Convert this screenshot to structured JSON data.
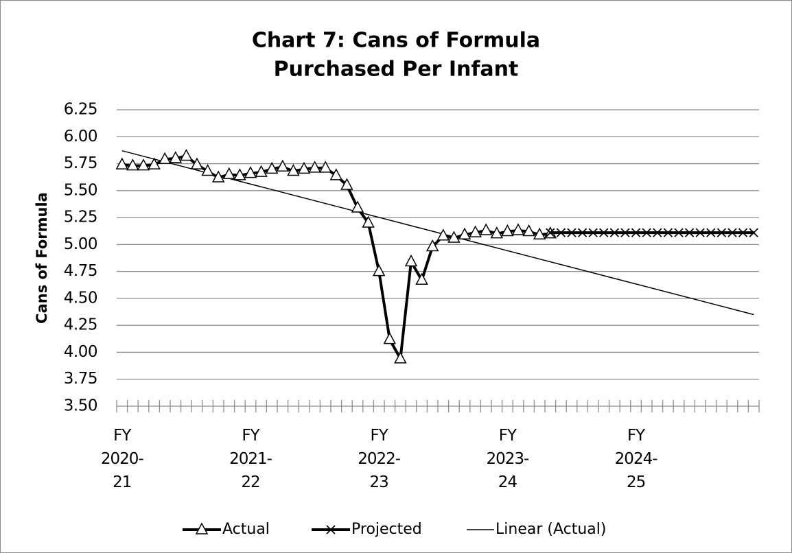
{
  "chart_data": {
    "type": "line",
    "title": "Chart 7: Cans of Formula",
    "subtitle": "Purchased Per Infant",
    "y_label": "Cans of Formula",
    "categories": [
      "FY 2020-21",
      null,
      null,
      null,
      null,
      null,
      null,
      null,
      null,
      null,
      null,
      null,
      "FY 2021-22",
      null,
      null,
      null,
      null,
      null,
      null,
      null,
      null,
      null,
      null,
      null,
      "FY 2022-23",
      null,
      null,
      null,
      null,
      null,
      null,
      null,
      null,
      null,
      null,
      null,
      "FY 2023-24",
      null,
      null,
      null,
      null,
      null,
      null,
      null,
      null,
      null,
      null,
      null,
      "FY 2024-25",
      null,
      null,
      null,
      null,
      null,
      null,
      null,
      null,
      null,
      null,
      null
    ],
    "series": [
      {
        "name": "Actual",
        "color": "#000000",
        "marker": "triangle",
        "values": [
          5.74,
          5.73,
          5.73,
          5.74,
          5.79,
          5.8,
          5.82,
          5.74,
          5.68,
          5.62,
          5.65,
          5.64,
          5.66,
          5.67,
          5.7,
          5.72,
          5.68,
          5.7,
          5.71,
          5.71,
          5.64,
          5.55,
          5.34,
          5.2,
          4.75,
          4.12,
          3.94,
          4.84,
          4.67,
          4.98,
          5.08,
          5.06,
          5.09,
          5.11,
          5.13,
          5.1,
          5.12,
          5.13,
          5.12,
          5.09,
          5.1,
          null,
          null,
          null,
          null,
          null,
          null,
          null,
          null,
          null,
          null,
          null,
          null,
          null,
          null,
          null,
          null,
          null,
          null,
          null
        ]
      },
      {
        "name": "Projected",
        "color": "#000000",
        "marker": "x",
        "values": [
          null,
          null,
          null,
          null,
          null,
          null,
          null,
          null,
          null,
          null,
          null,
          null,
          null,
          null,
          null,
          null,
          null,
          null,
          null,
          null,
          null,
          null,
          null,
          null,
          null,
          null,
          null,
          null,
          null,
          null,
          null,
          null,
          null,
          null,
          null,
          null,
          null,
          null,
          null,
          null,
          5.11,
          5.11,
          5.11,
          5.11,
          5.11,
          5.11,
          5.11,
          5.11,
          5.11,
          5.11,
          5.11,
          5.11,
          5.11,
          5.11,
          5.11,
          5.11,
          5.11,
          5.11,
          5.11,
          5.11
        ]
      }
    ],
    "trendline": {
      "name": "Linear (Actual)",
      "color": "#000000",
      "values": [
        5.87,
        4.35
      ]
    },
    "ylim": [
      3.5,
      6.25
    ],
    "yticks": [
      {
        "value": 3.5,
        "label": "3.50"
      },
      {
        "value": 3.75,
        "label": "3.75"
      },
      {
        "value": 4,
        "label": "4.00"
      },
      {
        "value": 4.25,
        "label": "4.25"
      },
      {
        "value": 4.5,
        "label": "4.50"
      },
      {
        "value": 4.75,
        "label": "4.75"
      },
      {
        "value": 5,
        "label": "5.00"
      },
      {
        "value": 5.25,
        "label": "5.25"
      },
      {
        "value": 5.5,
        "label": "5.50"
      },
      {
        "value": 5.75,
        "label": "5.75"
      },
      {
        "value": 6,
        "label": "6.00"
      },
      {
        "value": 6.25,
        "label": "6.25"
      }
    ],
    "grid": true,
    "legend": "bottom"
  }
}
